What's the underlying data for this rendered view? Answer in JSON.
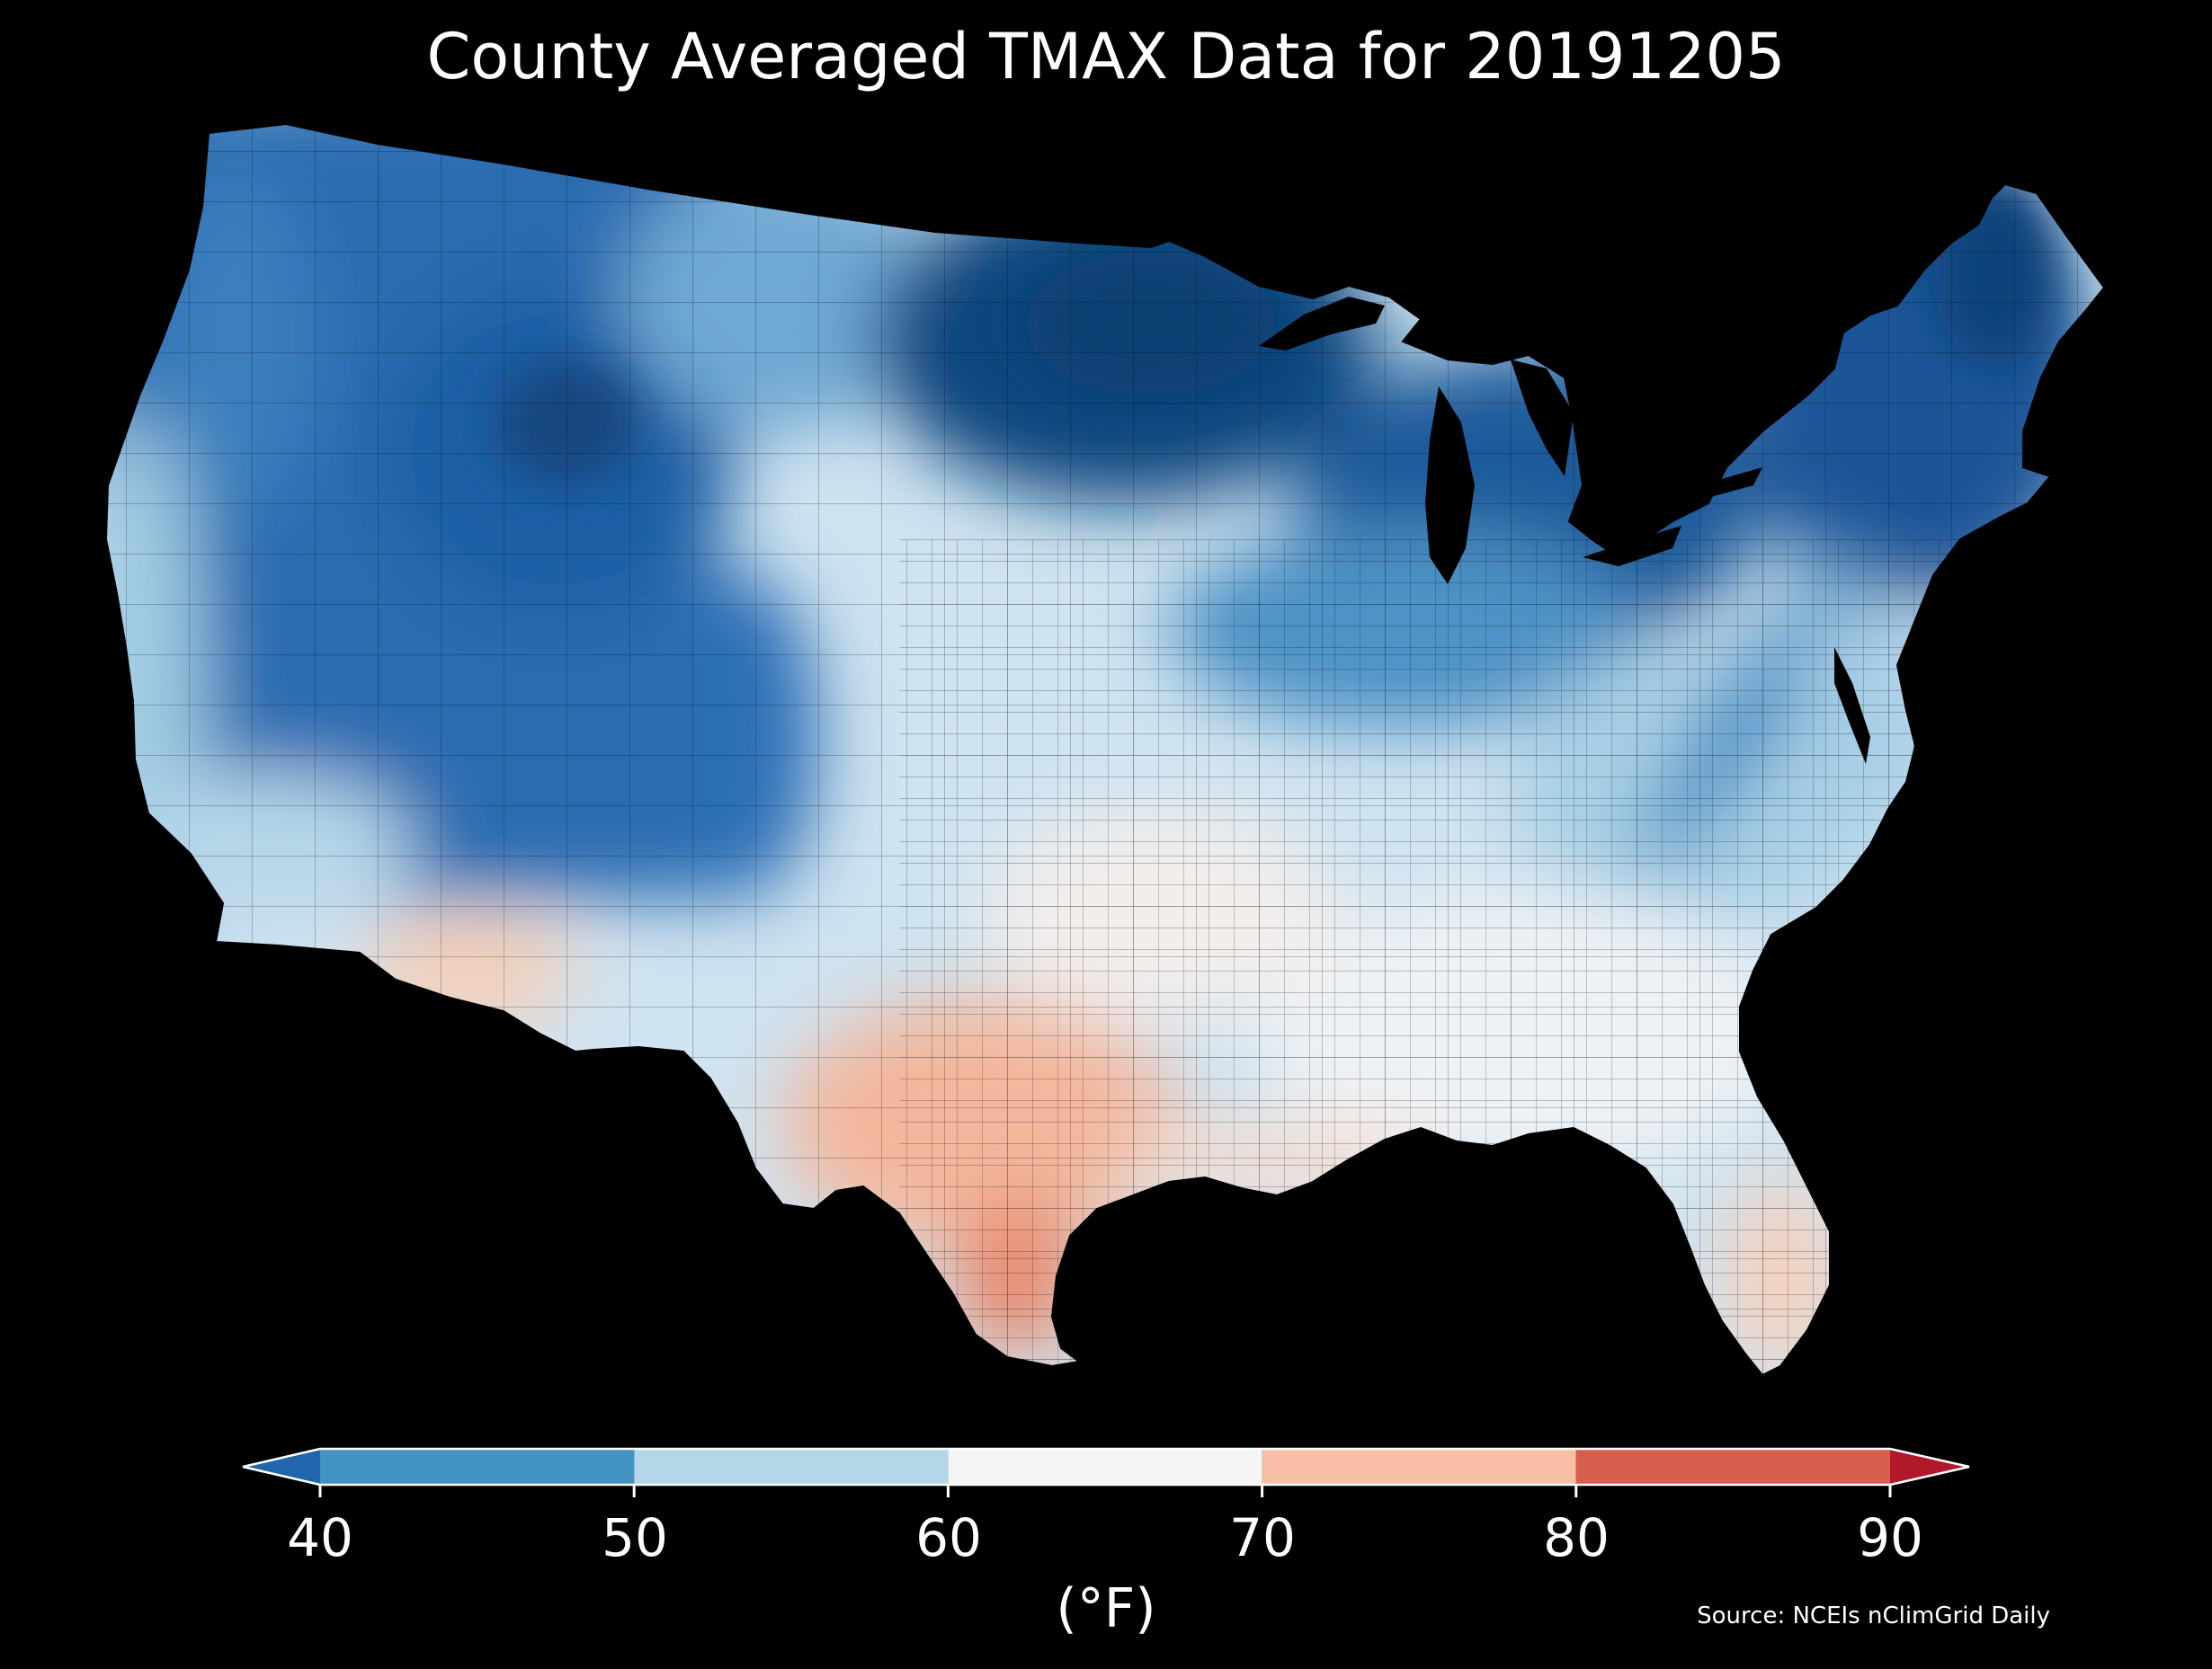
{
  "title": "County Averaged TMAX Data for 20191205",
  "colorbar": {
    "unit": "(°F)",
    "ticks": [
      "40",
      "50",
      "60",
      "70",
      "80",
      "90"
    ],
    "segments": [
      {
        "name": "below-40",
        "color": "#2166ac"
      },
      {
        "name": "40-50",
        "color": "#4393c3"
      },
      {
        "name": "50-60",
        "color": "#b4d6e8"
      },
      {
        "name": "60-70",
        "color": "#f5f5f5"
      },
      {
        "name": "70-80",
        "color": "#f7bfa5"
      },
      {
        "name": "80-90",
        "color": "#d6604d"
      },
      {
        "name": "above-90",
        "color": "#b2182b"
      }
    ]
  },
  "source": "Source: NCEIs nClimGrid Daily",
  "map": {
    "background": "#000000",
    "regions": [
      {
        "name": "pacific-northwest",
        "color": "#3a7fbd"
      },
      {
        "name": "west-coast",
        "color": "#9fcbe2"
      },
      {
        "name": "great-basin",
        "color": "#2b6cb0"
      },
      {
        "name": "rockies",
        "color": "#1f5fa5"
      },
      {
        "name": "northern-plains",
        "color": "#6fa9d3"
      },
      {
        "name": "upper-midwest",
        "color": "#11477f"
      },
      {
        "name": "great-lakes",
        "color": "#1d5a9a"
      },
      {
        "name": "northeast",
        "color": "#1a5597"
      },
      {
        "name": "central-plains",
        "color": "#cfe3f0"
      },
      {
        "name": "ohio-valley",
        "color": "#a9d0e6"
      },
      {
        "name": "appalachians",
        "color": "#4d93c6"
      },
      {
        "name": "mid-atlantic",
        "color": "#a8cfe6"
      },
      {
        "name": "southeast",
        "color": "#eef2f5"
      },
      {
        "name": "arizona",
        "color": "#f6cfb6"
      },
      {
        "name": "texas",
        "color": "#f3b79d"
      },
      {
        "name": "south-texas",
        "color": "#e98a6e"
      },
      {
        "name": "gulf-coast",
        "color": "#f6ddd0"
      },
      {
        "name": "florida",
        "color": "#f6d0bb"
      }
    ]
  }
}
